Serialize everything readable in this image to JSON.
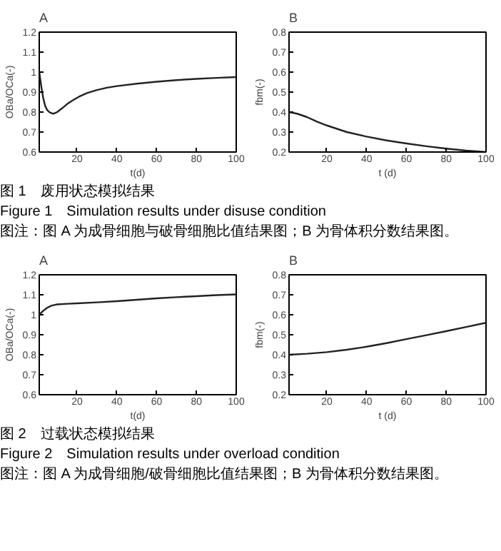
{
  "chart_data": [
    {
      "type": "line",
      "title": "A",
      "xlabel": "t(d)",
      "ylabel": "OBa/OCa(-)",
      "xlim": [
        1,
        100
      ],
      "ylim": [
        0.6,
        1.2
      ],
      "xticks": [
        20,
        40,
        60,
        80,
        100
      ],
      "yticks": [
        0.6,
        0.7,
        0.8,
        0.9,
        1,
        1.1,
        1.2
      ],
      "grid": false,
      "x": [
        1,
        2,
        3,
        4,
        5,
        6,
        7,
        8,
        9,
        10,
        12,
        15,
        18,
        21,
        25,
        30,
        35,
        40,
        50,
        60,
        70,
        80,
        90,
        100
      ],
      "series": [
        {
          "color": "#222222",
          "values": [
            1.0,
            0.93,
            0.87,
            0.83,
            0.81,
            0.8,
            0.795,
            0.792,
            0.795,
            0.8,
            0.815,
            0.84,
            0.86,
            0.877,
            0.895,
            0.91,
            0.922,
            0.93,
            0.942,
            0.952,
            0.96,
            0.966,
            0.971,
            0.975
          ]
        }
      ],
      "annotations": [
        "图 1　废用状态模拟结果",
        "Figure 1　Simulation results under disuse condition",
        "图注：图 A 为成骨细胞与破骨细胞比值结果图；B 为骨体积分数结果图。"
      ]
    },
    {
      "type": "line",
      "title": "B",
      "xlabel": "t (d)",
      "ylabel": "fbm(-)",
      "xlim": [
        1,
        100
      ],
      "ylim": [
        0.2,
        0.8
      ],
      "xticks": [
        20,
        40,
        60,
        80,
        100
      ],
      "yticks": [
        0.2,
        0.3,
        0.4,
        0.5,
        0.6,
        0.7,
        0.8
      ],
      "grid": false,
      "x": [
        1,
        5,
        10,
        15,
        20,
        30,
        40,
        50,
        60,
        70,
        80,
        90,
        100
      ],
      "series": [
        {
          "color": "#222222",
          "values": [
            0.4,
            0.392,
            0.375,
            0.352,
            0.333,
            0.3,
            0.277,
            0.258,
            0.243,
            0.229,
            0.217,
            0.207,
            0.2
          ]
        }
      ]
    },
    {
      "type": "line",
      "title": "A",
      "xlabel": "t(d)",
      "ylabel": "OBa/OCa(-)",
      "xlim": [
        1,
        100
      ],
      "ylim": [
        0.6,
        1.2
      ],
      "xticks": [
        20,
        40,
        60,
        80,
        100
      ],
      "yticks": [
        0.6,
        0.7,
        0.8,
        0.9,
        1,
        1.1,
        1.2
      ],
      "grid": false,
      "x": [
        1,
        3,
        5,
        7,
        10,
        15,
        20,
        30,
        40,
        50,
        60,
        70,
        80,
        90,
        100
      ],
      "series": [
        {
          "color": "#222222",
          "values": [
            1.0,
            1.02,
            1.035,
            1.045,
            1.052,
            1.055,
            1.057,
            1.062,
            1.068,
            1.075,
            1.082,
            1.088,
            1.093,
            1.098,
            1.102
          ]
        }
      ],
      "annotations": [
        "图 2　过载状态模拟结果",
        "Figure 2　Simulation results under overload condition",
        "图注：图 A 为成骨细胞/破骨细胞比值结果图；B 为骨体积分数结果图。"
      ]
    },
    {
      "type": "line",
      "title": "B",
      "xlabel": "t (d)",
      "ylabel": "fbm(-)",
      "xlim": [
        1,
        100
      ],
      "ylim": [
        0.2,
        0.8
      ],
      "xticks": [
        20,
        40,
        60,
        80,
        100
      ],
      "yticks": [
        0.2,
        0.3,
        0.4,
        0.5,
        0.6,
        0.7,
        0.8
      ],
      "grid": false,
      "x": [
        1,
        10,
        20,
        30,
        40,
        50,
        60,
        70,
        80,
        90,
        100
      ],
      "series": [
        {
          "color": "#222222",
          "values": [
            0.4,
            0.405,
            0.413,
            0.425,
            0.44,
            0.458,
            0.478,
            0.498,
            0.518,
            0.539,
            0.56
          ]
        }
      ]
    }
  ]
}
